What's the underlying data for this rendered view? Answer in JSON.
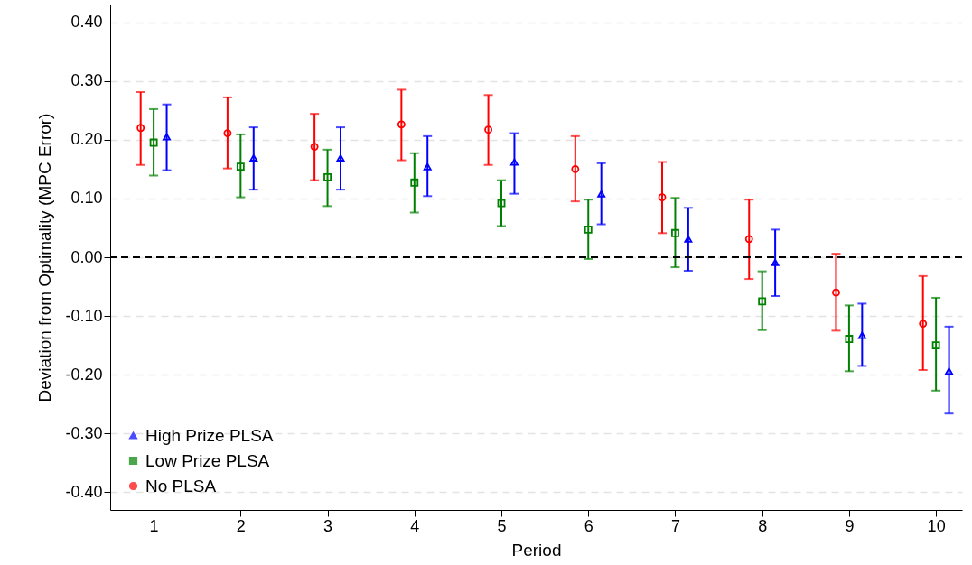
{
  "chart_data": {
    "type": "scatter",
    "xlabel": "Period",
    "ylabel": "Deviation from Optimality (MPC Error)",
    "xlim": [
      0.5,
      10.3
    ],
    "xticks": [
      1,
      2,
      3,
      4,
      5,
      6,
      7,
      8,
      9,
      10
    ],
    "ylim": [
      -0.43,
      0.43
    ],
    "yticks": [
      {
        "value": -0.4,
        "label": "-0.40"
      },
      {
        "value": -0.3,
        "label": "-0.30"
      },
      {
        "value": -0.2,
        "label": "-0.20"
      },
      {
        "value": -0.1,
        "label": "-0.10"
      },
      {
        "value": 0,
        "label": "0.00"
      },
      {
        "value": 0.1,
        "label": "0.10"
      },
      {
        "value": 0.2,
        "label": "0.20"
      },
      {
        "value": 0.3,
        "label": "0.30"
      },
      {
        "value": 0.4,
        "label": "0.40"
      }
    ],
    "grid": "y",
    "legend": "bottom left",
    "ref_lines": [
      {
        "axis": "y",
        "value": 0,
        "color": "#000000",
        "line_style": "dashed"
      }
    ],
    "series": [
      {
        "name": "High Prize PLSA",
        "color": "#0000ff",
        "marker": "triangle",
        "x": [
          1.15,
          2.15,
          3.15,
          4.15,
          5.15,
          6.15,
          7.15,
          8.15,
          9.15,
          10.15
        ],
        "values": [
          0.205,
          0.169,
          0.169,
          0.154,
          0.162,
          0.108,
          0.031,
          -0.009,
          -0.133,
          -0.194
        ],
        "errors": [
          [
            0.148,
            0.26
          ],
          [
            0.115,
            0.221
          ],
          [
            0.115,
            0.221
          ],
          [
            0.104,
            0.206
          ],
          [
            0.108,
            0.211
          ],
          [
            0.056,
            0.16
          ],
          [
            -0.023,
            0.084
          ],
          [
            -0.066,
            0.047
          ],
          [
            -0.185,
            -0.079
          ],
          [
            -0.266,
            -0.118
          ]
        ]
      },
      {
        "name": "Low Prize PLSA",
        "color": "#008000",
        "marker": "square",
        "x": [
          1,
          2,
          3,
          4,
          5,
          6,
          7,
          8,
          9,
          10
        ],
        "values": [
          0.195,
          0.154,
          0.136,
          0.127,
          0.092,
          0.047,
          0.041,
          -0.075,
          -0.139,
          -0.15
        ],
        "errors": [
          [
            0.139,
            0.252
          ],
          [
            0.102,
            0.209
          ],
          [
            0.087,
            0.183
          ],
          [
            0.076,
            0.177
          ],
          [
            0.053,
            0.131
          ],
          [
            -0.003,
            0.098
          ],
          [
            -0.017,
            0.101
          ],
          [
            -0.124,
            -0.024
          ],
          [
            -0.194,
            -0.082
          ],
          [
            -0.227,
            -0.069
          ]
        ]
      },
      {
        "name": "No PLSA",
        "color": "#ff0000",
        "marker": "circle",
        "x": [
          0.85,
          1.85,
          2.85,
          3.85,
          4.85,
          5.85,
          6.85,
          7.85,
          8.85,
          9.85
        ],
        "values": [
          0.22,
          0.211,
          0.188,
          0.226,
          0.217,
          0.15,
          0.102,
          0.031,
          -0.06,
          -0.113
        ],
        "errors": [
          [
            0.157,
            0.281
          ],
          [
            0.151,
            0.272
          ],
          [
            0.131,
            0.244
          ],
          [
            0.165,
            0.285
          ],
          [
            0.157,
            0.276
          ],
          [
            0.095,
            0.206
          ],
          [
            0.041,
            0.162
          ],
          [
            -0.037,
            0.098
          ],
          [
            -0.125,
            0.006
          ],
          [
            -0.192,
            -0.032
          ]
        ]
      }
    ]
  }
}
